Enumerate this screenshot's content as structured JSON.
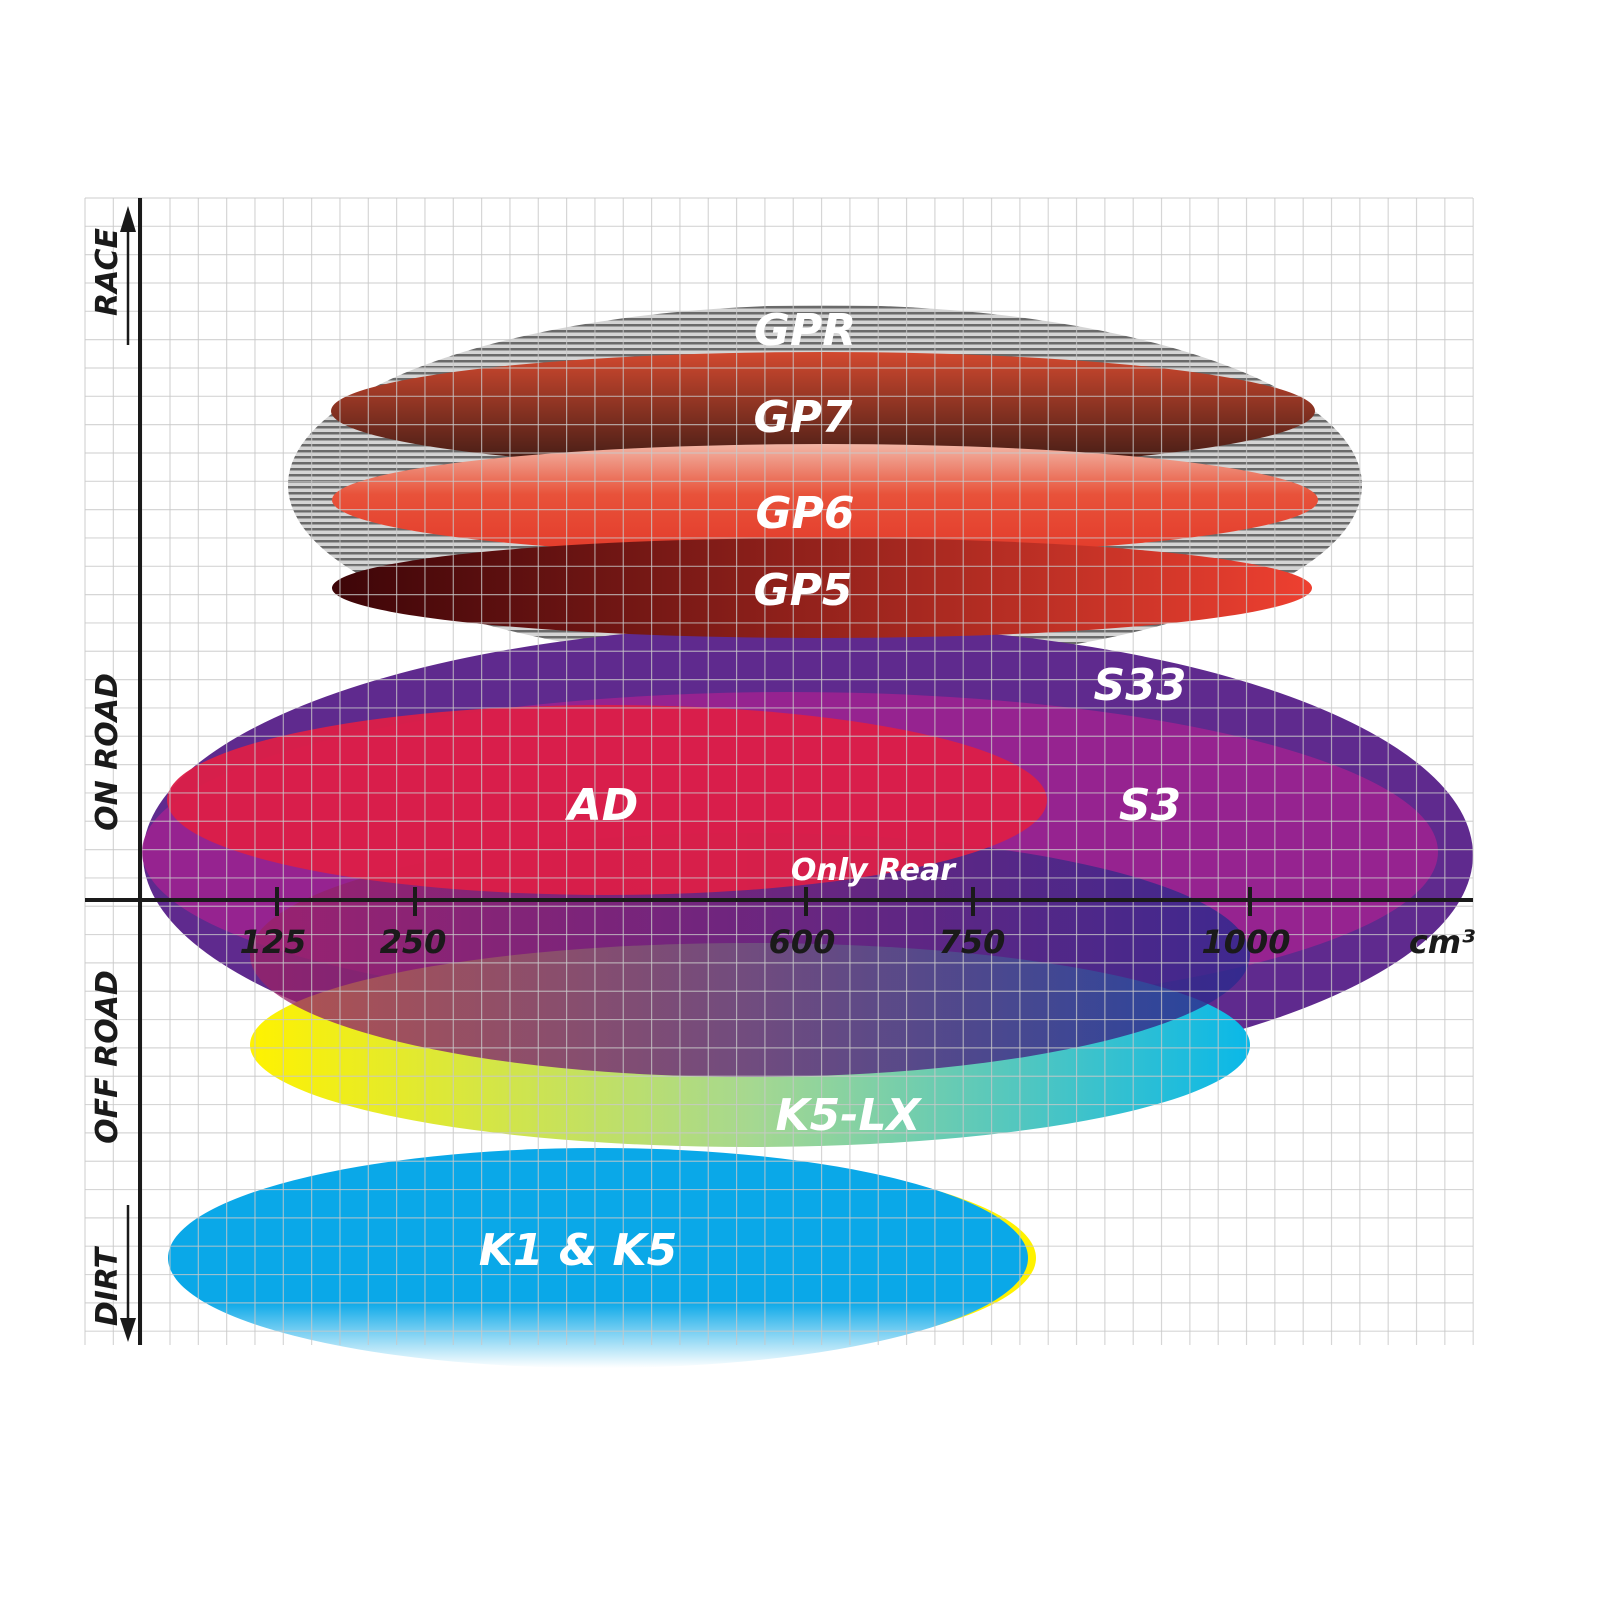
{
  "axis": {
    "y_labels": {
      "race": "RACE",
      "on_road": "ON ROAD",
      "off_road": "OFF ROAD",
      "dirt": "DIRT"
    },
    "x_ticks": [
      "125",
      "250",
      "600",
      "750",
      "1000"
    ],
    "x_unit": "cm³"
  },
  "products": {
    "gpr": "GPR",
    "gp7": "GP7",
    "gp6": "GP6",
    "gp5": "GP5",
    "s33": "S33",
    "s3": "S3",
    "ad": "AD",
    "only_rear": "Only Rear",
    "k5lx": "K5-LX",
    "k1k5": "K1 & K5"
  },
  "colors": {
    "gpr": "#9a9a9a",
    "s33": "#5f2a8e",
    "s3": "#9c2290",
    "ad": "#dc1f48",
    "k1k5": "#0aa8e8",
    "axis": "#1a1a1a",
    "grid": "#c8c8c8"
  }
}
